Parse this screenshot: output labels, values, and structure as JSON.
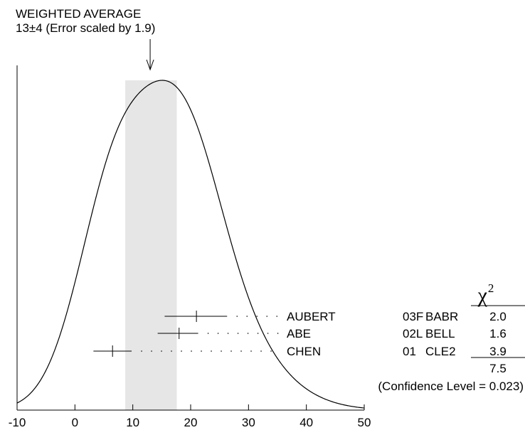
{
  "chart_data": {
    "type": "ideogram",
    "title_line1": "WEIGHTED AVERAGE",
    "title_line2": "13±4 (Error scaled by 1.9)",
    "weighted_average": 13,
    "average_error": 4,
    "band": [
      8.7,
      17.6
    ],
    "xlim": [
      -10,
      50
    ],
    "x_ticks": [
      -10,
      0,
      10,
      20,
      30,
      40,
      50
    ],
    "x_tick_labels": [
      "-10",
      "0",
      "10",
      "20",
      "30",
      "40",
      "50"
    ],
    "measurements": [
      {
        "name": "AUBERT",
        "value": 21,
        "low": 15.5,
        "high": 26.3,
        "year": "03F",
        "tech": "BABR",
        "chi2": "2.0"
      },
      {
        "name": "ABE",
        "value": 18,
        "low": 14.3,
        "high": 21.3,
        "year": "02L",
        "tech": "BELL",
        "chi2": "1.6"
      },
      {
        "name": "CHEN",
        "value": 6.5,
        "low": 3.2,
        "high": 9.8,
        "year": "01",
        "tech": "CLE2",
        "chi2": "3.9"
      }
    ],
    "chi2_header": "χ",
    "chi2_header_exp": "2",
    "chi2_total": "7.5",
    "confidence_text": "(Confidence Level = 0.023)",
    "curve_peaks": [
      {
        "x": 6.5,
        "relative_height": 0.83
      },
      {
        "x": 18.5,
        "relative_height": 1.0
      }
    ],
    "band_color": "#e6e6e6",
    "line_color": "#000000"
  }
}
